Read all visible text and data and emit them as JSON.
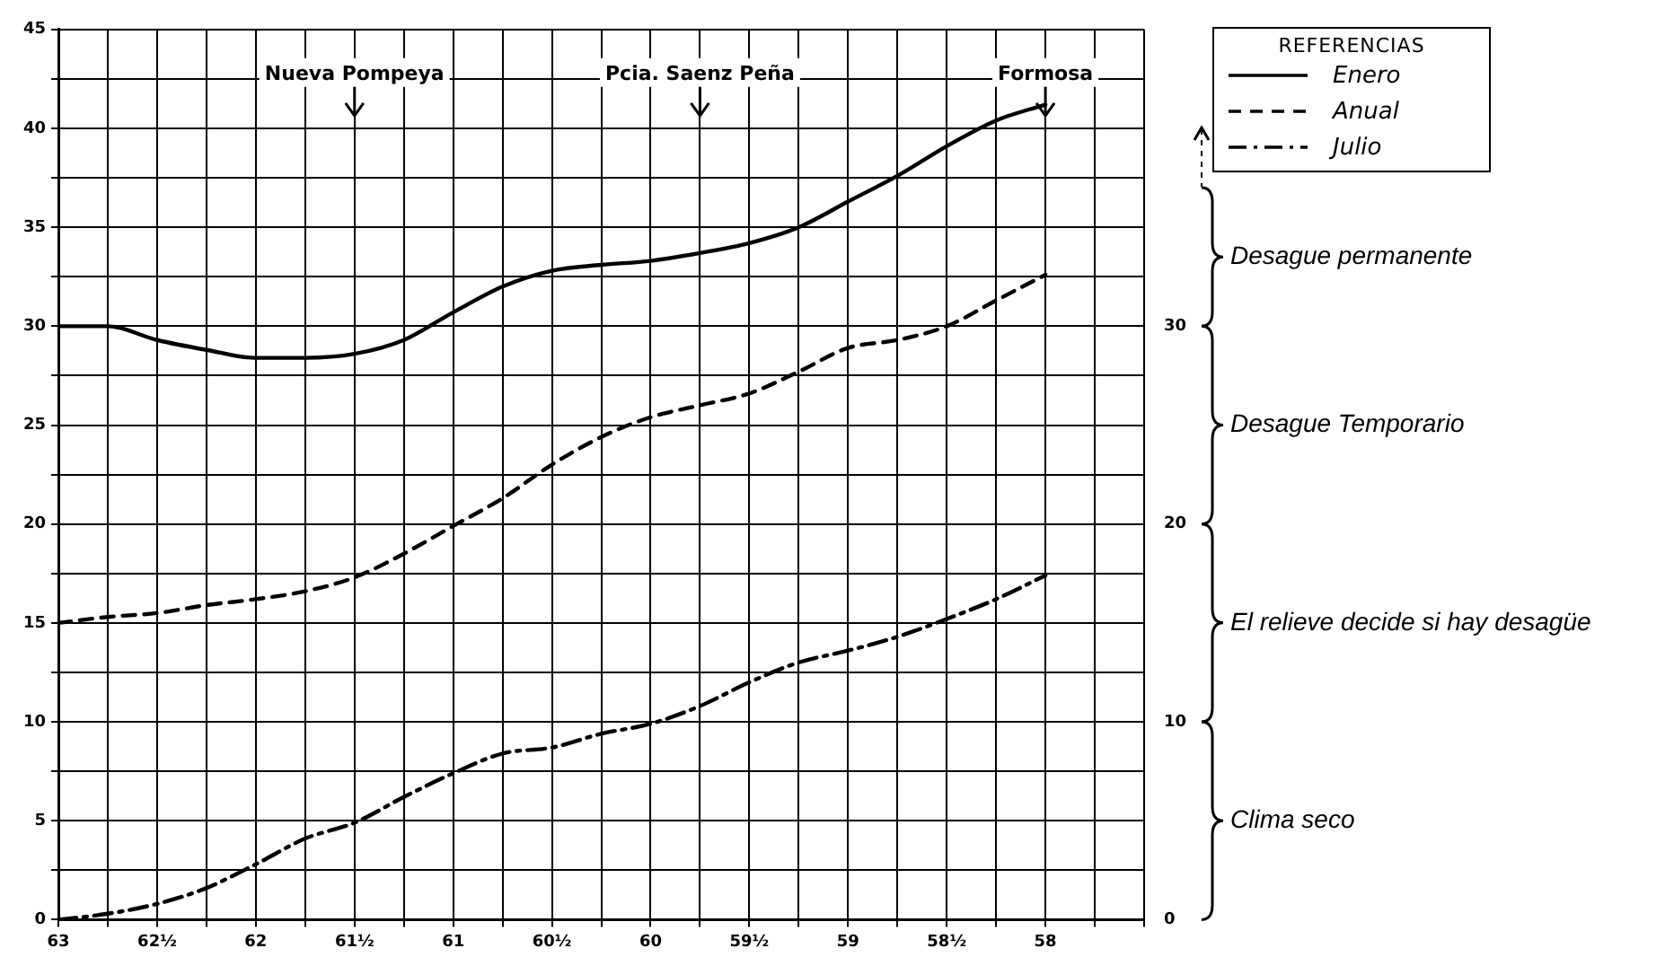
{
  "chart_data": {
    "type": "line",
    "x": [
      63,
      62.75,
      62.5,
      62.25,
      62,
      61.75,
      61.5,
      61.25,
      61,
      60.75,
      60.5,
      60.25,
      60,
      59.75,
      59.5,
      59.25,
      59,
      58.75,
      58.5,
      58.25,
      58
    ],
    "series": [
      {
        "name": "Enero",
        "color": "#000000",
        "line_style": "solid",
        "values": [
          30,
          30,
          29.3,
          28.8,
          28.4,
          28.4,
          28.6,
          29.3,
          30.7,
          32,
          32.8,
          33.1,
          33.3,
          33.7,
          34.2,
          35,
          36.3,
          37.6,
          39.1,
          40.4,
          41.2
        ]
      },
      {
        "name": "Anual",
        "color": "#000000",
        "line_style": "dashed",
        "values": [
          15,
          15.3,
          15.5,
          15.9,
          16.2,
          16.6,
          17.3,
          18.5,
          19.9,
          21.3,
          23,
          24.4,
          25.4,
          26,
          26.6,
          27.7,
          28.9,
          29.3,
          30,
          31.3,
          32.6
        ]
      },
      {
        "name": "Julio",
        "color": "#000000",
        "line_style": "dashdot",
        "values": [
          0,
          0.3,
          0.8,
          1.6,
          2.8,
          4.1,
          4.9,
          6.2,
          7.4,
          8.4,
          8.7,
          9.4,
          9.9,
          10.8,
          12,
          13,
          13.6,
          14.3,
          15.2,
          16.2,
          17.4
        ]
      }
    ],
    "xlim": [
      63,
      57.5
    ],
    "xticks": [
      63,
      {
        "value": 62.75,
        "label": null
      },
      {
        "value": 62.5,
        "label": "62½"
      },
      {
        "value": 62.25,
        "label": null
      },
      62,
      {
        "value": 61.75,
        "label": null
      },
      {
        "value": 61.5,
        "label": "61½"
      },
      {
        "value": 61.25,
        "label": null
      },
      61,
      {
        "value": 60.75,
        "label": null
      },
      {
        "value": 60.5,
        "label": "60½"
      },
      {
        "value": 60.25,
        "label": null
      },
      60,
      {
        "value": 59.75,
        "label": null
      },
      {
        "value": 59.5,
        "label": "59½"
      },
      {
        "value": 59.25,
        "label": null
      },
      59,
      {
        "value": 58.75,
        "label": null
      },
      {
        "value": 58.5,
        "label": "58½"
      },
      {
        "value": 58.25,
        "label": null
      },
      58,
      {
        "value": 57.75,
        "label": null
      },
      {
        "value": 57.5,
        "label": null
      }
    ],
    "ylim": [
      0,
      45
    ],
    "yticks": [
      0,
      {
        "value": 2.5,
        "label": null
      },
      5,
      {
        "value": 7.5,
        "label": null
      },
      10,
      {
        "value": 12.5,
        "label": null
      },
      15,
      {
        "value": 17.5,
        "label": null
      },
      20,
      {
        "value": 22.5,
        "label": null
      },
      25,
      {
        "value": 27.5,
        "label": null
      },
      30,
      {
        "value": 32.5,
        "label": null
      },
      35,
      {
        "value": 37.5,
        "label": null
      },
      40,
      {
        "value": 42.5,
        "label": null
      },
      45
    ],
    "y2lim": [
      0,
      45
    ],
    "y2ticks": [
      0,
      10,
      20,
      30
    ],
    "annotations": [
      {
        "text": "Nueva Pompeya",
        "x": 61.5
      },
      {
        "text": "Pcia. Saenz Peña",
        "x": 59.75
      },
      {
        "text": "Formosa",
        "x": 58
      },
      "Clima seco",
      "El relieve decide si hay desagüe",
      "Desague Temporario",
      "Desague permanente"
    ],
    "legend_title": "REFERENCIAS",
    "legend": "top right",
    "grid": true,
    "marker": "none"
  }
}
